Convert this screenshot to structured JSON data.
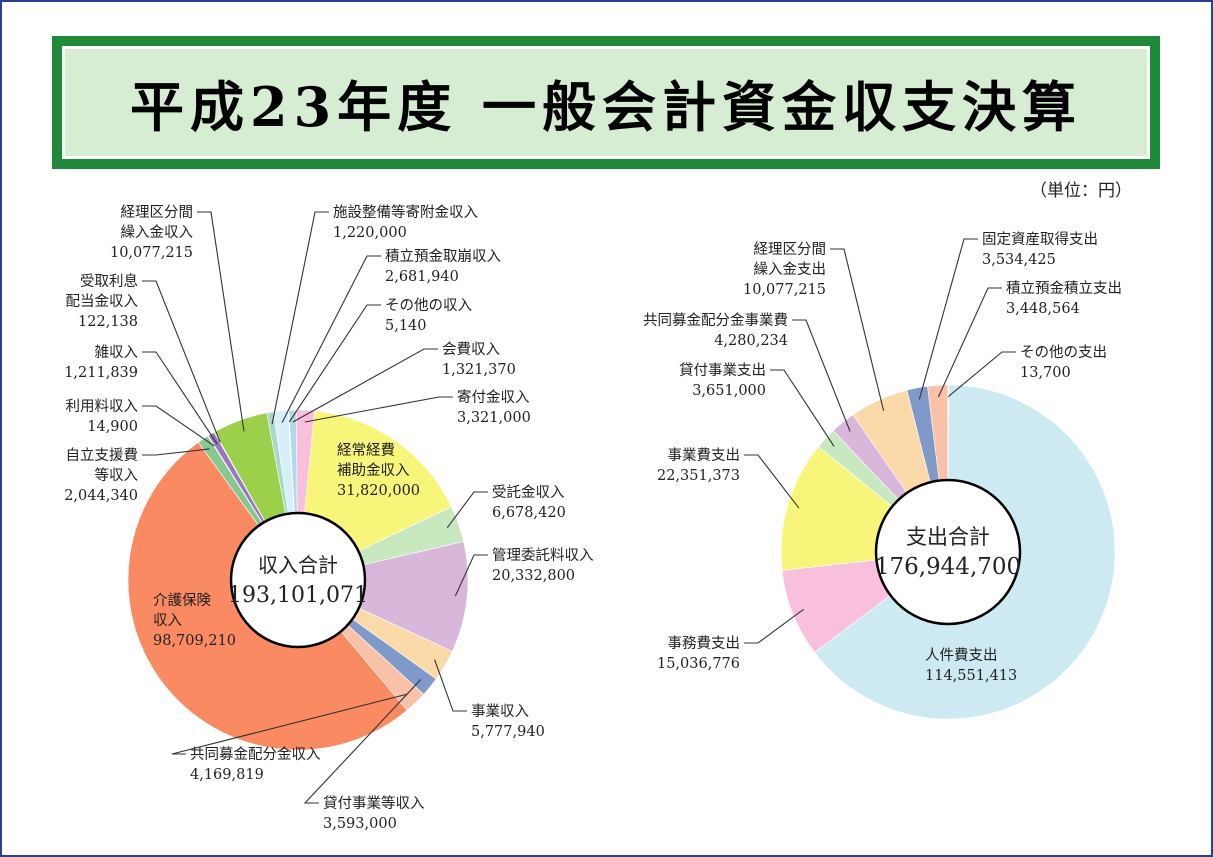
{
  "title": "平成23年度 一般会計資金収支決算",
  "unit": "（単位：円）",
  "chart_data": [
    {
      "type": "pie",
      "center_label": "収入合計",
      "center_value": "193,101,071",
      "slices": [
        {
          "name": "経常経費補助金収入",
          "label_lines": [
            "経常経費",
            "補助金収入"
          ],
          "value": 31820000,
          "value_text": "31,820,000",
          "color": "#f8f67a"
        },
        {
          "name": "受託金収入",
          "label_lines": [
            "受託金収入"
          ],
          "value": 6678420,
          "value_text": "6,678,420",
          "color": "#c8e8c0"
        },
        {
          "name": "管理委託料収入",
          "label_lines": [
            "管理委託料収入"
          ],
          "value": 20332800,
          "value_text": "20,332,800",
          "color": "#d9b7da"
        },
        {
          "name": "事業収入",
          "label_lines": [
            "事業収入"
          ],
          "value": 5777940,
          "value_text": "5,777,940",
          "color": "#fbd9a8"
        },
        {
          "name": "貸付事業等収入",
          "label_lines": [
            "貸付事業等収入"
          ],
          "value": 3593000,
          "value_text": "3,593,000",
          "color": "#7f99c8"
        },
        {
          "name": "共同募金配分金収入",
          "label_lines": [
            "共同募金配分金収入"
          ],
          "value": 4169819,
          "value_text": "4,169,819",
          "color": "#f9c2a8"
        },
        {
          "name": "介護保険収入",
          "label_lines": [
            "介護保険",
            "収入"
          ],
          "value": 98709210,
          "value_text": "98,709,210",
          "color": "#f98a62"
        },
        {
          "name": "自立支援費等収入",
          "label_lines": [
            "自立支援費",
            "等収入"
          ],
          "value": 2044340,
          "value_text": "2,044,340",
          "color": "#86c98f"
        },
        {
          "name": "利用料収入",
          "label_lines": [
            "利用料収入"
          ],
          "value": 14900,
          "value_text": "14,900",
          "color": "#3a6fb0"
        },
        {
          "name": "雑収入",
          "label_lines": [
            "雑収入"
          ],
          "value": 1211839,
          "value_text": "1,211,839",
          "color": "#9a78c0"
        },
        {
          "name": "受取利息配当金収入",
          "label_lines": [
            "受取利息",
            "配当金収入"
          ],
          "value": 122138,
          "value_text": "122,138",
          "color": "#5a8a3a"
        },
        {
          "name": "経理区分間繰入金収入",
          "label_lines": [
            "経理区分間",
            "繰入金収入"
          ],
          "value": 10077215,
          "value_text": "10,077,215",
          "color": "#9ccf4a"
        },
        {
          "name": "施設整備等寄附金収入",
          "label_lines": [
            "施設整備等寄附金収入"
          ],
          "value": 1220000,
          "value_text": "1,220,000",
          "color": "#a8d8c8"
        },
        {
          "name": "積立預金取崩収入",
          "label_lines": [
            "積立預金取崩収入"
          ],
          "value": 2681940,
          "value_text": "2,681,940",
          "color": "#d8eef8"
        },
        {
          "name": "その他の収入",
          "label_lines": [
            "その他の収入"
          ],
          "value": 5140,
          "value_text": "5,140",
          "color": "#e0e0e0"
        },
        {
          "name": "会費収入",
          "label_lines": [
            "会費収入"
          ],
          "value": 1321370,
          "value_text": "1,321,370",
          "color": "#b0d8f0"
        },
        {
          "name": "寄付金収入",
          "label_lines": [
            "寄付金収入"
          ],
          "value": 3321000,
          "value_text": "3,321,000",
          "color": "#f8c0dc"
        }
      ]
    },
    {
      "type": "pie",
      "center_label": "支出合計",
      "center_value": "176,944,700",
      "slices": [
        {
          "name": "人件費支出",
          "label_lines": [
            "人件費支出"
          ],
          "value": 114551413,
          "value_text": "114,551,413",
          "color": "#cdeaf2"
        },
        {
          "name": "事務費支出",
          "label_lines": [
            "事務費支出"
          ],
          "value": 15036776,
          "value_text": "15,036,776",
          "color": "#f8c0dc"
        },
        {
          "name": "事業費支出",
          "label_lines": [
            "事業費支出"
          ],
          "value": 22351373,
          "value_text": "22,351,373",
          "color": "#f8f67a"
        },
        {
          "name": "貸付事業支出",
          "label_lines": [
            "貸付事業支出"
          ],
          "value": 3651000,
          "value_text": "3,651,000",
          "color": "#c8e8c0"
        },
        {
          "name": "共同募金配分金事業費",
          "label_lines": [
            "共同募金配分金事業費"
          ],
          "value": 4280234,
          "value_text": "4,280,234",
          "color": "#d9b7da"
        },
        {
          "name": "経理区分間繰入金支出",
          "label_lines": [
            "経理区分間",
            "繰入金支出"
          ],
          "value": 10077215,
          "value_text": "10,077,215",
          "color": "#fbd9a8"
        },
        {
          "name": "固定資産取得支出",
          "label_lines": [
            "固定資産取得支出"
          ],
          "value": 3534425,
          "value_text": "3,534,425",
          "color": "#7f99c8"
        },
        {
          "name": "積立預金積立支出",
          "label_lines": [
            "積立預金積立支出"
          ],
          "value": 3448564,
          "value_text": "3,448,564",
          "color": "#f9c2a8"
        },
        {
          "name": "その他の支出",
          "label_lines": [
            "その他の支出"
          ],
          "value": 13700,
          "value_text": "13,700",
          "color": "#f98a62"
        }
      ]
    }
  ]
}
